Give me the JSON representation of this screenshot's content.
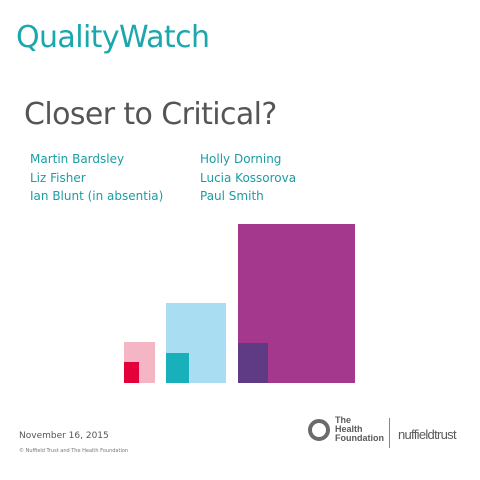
{
  "brand": "QualityWatch",
  "title": "Closer to Critical?",
  "authors_left": [
    "Martin Bardsley",
    "Liz Fisher",
    "Ian Blunt (in absentia)"
  ],
  "authors_right": [
    "Holly Dorning",
    "Lucia Kossorova",
    "Paul Smith"
  ],
  "date": "November 16, 2015",
  "copyright": "© Nuffield Trust and The Health Foundation",
  "logos": {
    "health_foundation": [
      "The",
      "Health",
      "Foundation"
    ],
    "nuffield": "nuffieldtrust"
  },
  "colors": {
    "teal": "#1aa7ad",
    "pink_light": "#f4b6c4",
    "pink_dark": "#e4003b",
    "blue_light": "#a8ddf2",
    "teal_block": "#18b1bb",
    "purple_large": "#a3388d",
    "purple_dark": "#5f3b86"
  }
}
